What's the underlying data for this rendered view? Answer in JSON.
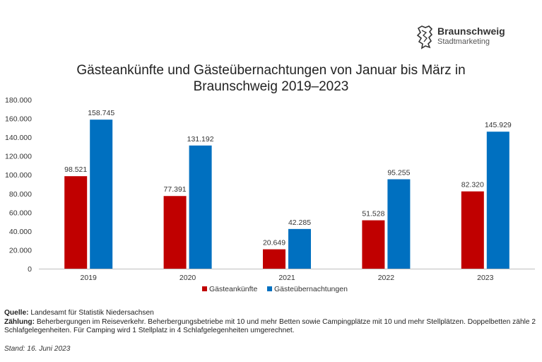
{
  "logo": {
    "name": "Braunschweig",
    "subtitle": "Stadtmarketing"
  },
  "chart_data": {
    "type": "bar",
    "title_lines": [
      "Gästeankünfte und Gästeübernachtungen von Januar bis März in",
      "Braunschweig 2019–2023"
    ],
    "categories": [
      "2019",
      "2020",
      "2021",
      "2022",
      "2023"
    ],
    "series": [
      {
        "name": "Gästeankünfte",
        "color": "#C00000",
        "values": [
          98521,
          77391,
          20649,
          51528,
          82320
        ],
        "labels": [
          "98.521",
          "77.391",
          "20.649",
          "51.528",
          "82.320"
        ]
      },
      {
        "name": "Gästeübernachtungen",
        "color": "#0070C0",
        "values": [
          158745,
          131192,
          42285,
          95255,
          145929
        ],
        "labels": [
          "158.745",
          "131.192",
          "42.285",
          "95.255",
          "145.929"
        ]
      }
    ],
    "ylim": [
      0,
      180000
    ],
    "yticks": [
      0,
      20000,
      40000,
      60000,
      80000,
      100000,
      120000,
      140000,
      160000,
      180000
    ],
    "ytick_labels": [
      "0",
      "20.000",
      "40.000",
      "60.000",
      "80.000",
      "100.000",
      "120.000",
      "140.000",
      "160.000",
      "180.000"
    ],
    "grid": false,
    "legend": "bottom-center",
    "xlabel": "",
    "ylabel": ""
  },
  "notes": {
    "quelle_label": "Quelle:",
    "quelle_text": " Landesamt für Statistik Niedersachsen",
    "zaehlung_label": "Zählung:",
    "zaehlung_text": " Beherbergungen im Reiseverkehr. Beherbergungsbetriebe mit 10 und mehr Betten sowie Campingplätze mit 10 und mehr Stellplätzen. Doppelbetten zähle 2 Schlafgelegenheiten. Für Camping wird 1 Stellplatz in 4 Schlafgelegenheiten umgerechnet.",
    "stand": "Stand: 16. Juni 2023"
  }
}
